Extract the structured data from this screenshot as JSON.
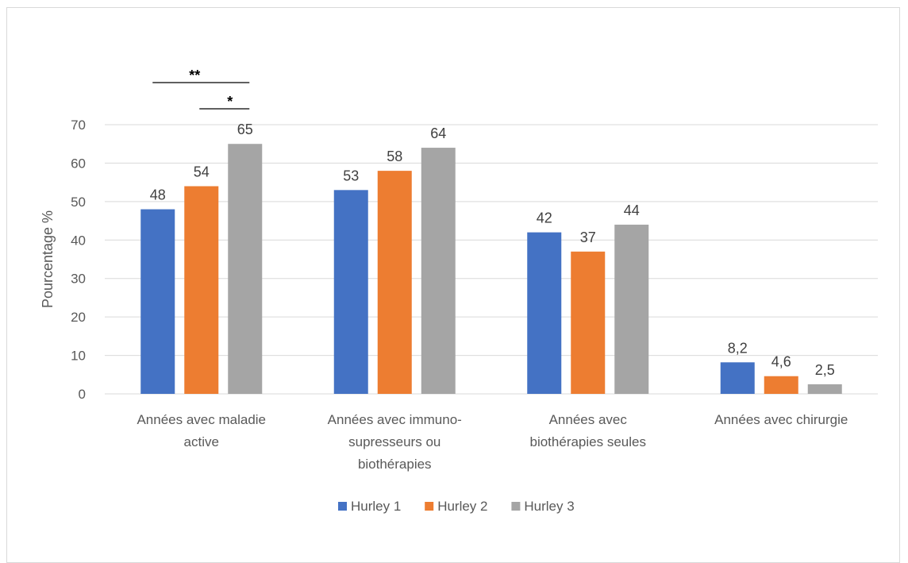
{
  "chart_data": {
    "type": "bar",
    "title": "",
    "xlabel": "",
    "ylabel": "Pourcentage %",
    "ylim": [
      0,
      70
    ],
    "yticks": [
      "0",
      "10",
      "20",
      "30",
      "40",
      "50",
      "60",
      "70"
    ],
    "grid": true,
    "legend_position": "bottom",
    "categories": [
      [
        "Années avec maladie",
        "active"
      ],
      [
        "Années avec immuno-",
        "supresseurs ou",
        "biothérapies"
      ],
      [
        "Années avec",
        "biothérapies seules"
      ],
      [
        "Années avec chirurgie"
      ]
    ],
    "series": [
      {
        "name": "Hurley 1",
        "color": "#4472c4",
        "values": [
          48,
          53,
          42,
          8.2
        ],
        "labels": [
          "48",
          "53",
          "42",
          "8,2"
        ]
      },
      {
        "name": "Hurley 2",
        "color": "#ed7d31",
        "values": [
          54,
          58,
          37,
          4.6
        ],
        "labels": [
          "54",
          "58",
          "37",
          "4,6"
        ]
      },
      {
        "name": "Hurley 3",
        "color": "#a5a5a5",
        "values": [
          65,
          64,
          44,
          2.5
        ],
        "labels": [
          "65",
          "64",
          "44",
          "2,5"
        ]
      }
    ],
    "significance": [
      {
        "label": "**",
        "category": 0,
        "from_series": 0,
        "to_series": 2
      },
      {
        "label": "*",
        "category": 0,
        "from_series": 1,
        "to_series": 2
      }
    ]
  }
}
